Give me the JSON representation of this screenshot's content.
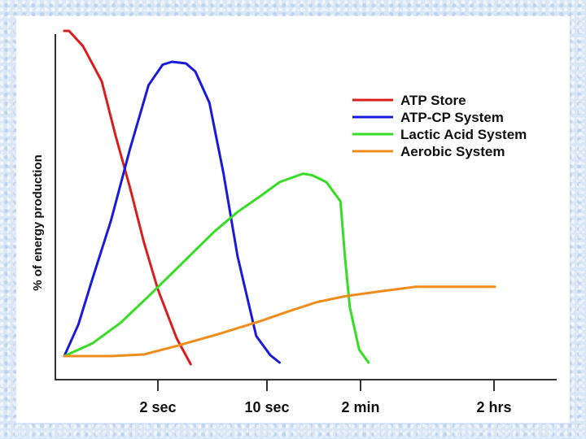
{
  "chart_data": {
    "type": "line",
    "title": "",
    "xlabel": "",
    "ylabel": "% of energy production",
    "ylim": [
      0,
      100
    ],
    "categories": [
      "2 sec",
      "10 sec",
      "2 min",
      "2 hrs"
    ],
    "grid": false,
    "legend_position": "top-right",
    "series": [
      {
        "name": "ATP Store",
        "color": "#d81e1e",
        "points": [
          [
            0,
            100
          ],
          [
            0.05,
            100
          ],
          [
            0.2,
            95.3
          ],
          [
            0.4,
            84.5
          ],
          [
            0.55,
            67.5
          ],
          [
            0.7,
            52
          ],
          [
            0.85,
            35
          ],
          [
            1,
            20.5
          ],
          [
            1.2,
            5.5
          ],
          [
            1.35,
            -2.5
          ]
        ]
      },
      {
        "name": "ATP-CP System",
        "color": "#1a1adb",
        "points": [
          [
            0,
            0
          ],
          [
            0.15,
            9.7
          ],
          [
            0.3,
            23.7
          ],
          [
            0.5,
            41.8
          ],
          [
            0.7,
            63.5
          ],
          [
            0.9,
            83.3
          ],
          [
            1.05,
            89.6
          ],
          [
            1.15,
            90.5
          ],
          [
            1.3,
            90
          ],
          [
            1.4,
            87.5
          ],
          [
            1.55,
            77.9
          ],
          [
            1.7,
            56.3
          ],
          [
            1.85,
            30.8
          ],
          [
            2.05,
            6.2
          ],
          [
            2.2,
            0.3
          ],
          [
            2.3,
            -2
          ]
        ]
      },
      {
        "name": "Lactic Acid System",
        "color": "#36dd24",
        "points": [
          [
            0,
            0
          ],
          [
            0.3,
            3.9
          ],
          [
            0.6,
            10.2
          ],
          [
            0.9,
            18.4
          ],
          [
            1.25,
            28.3
          ],
          [
            1.6,
            38.2
          ],
          [
            1.85,
            44.3
          ],
          [
            2.1,
            49.3
          ],
          [
            2.3,
            53.5
          ],
          [
            2.55,
            56.1
          ],
          [
            2.65,
            55.6
          ],
          [
            2.8,
            53.5
          ],
          [
            2.95,
            47.6
          ],
          [
            3.0,
            30
          ],
          [
            3.05,
            15
          ],
          [
            3.15,
            2
          ],
          [
            3.25,
            -2
          ]
        ]
      },
      {
        "name": "Aerobic System",
        "color": "#f08c1c",
        "points": [
          [
            0,
            0
          ],
          [
            0.5,
            0
          ],
          [
            0.85,
            0.5
          ],
          [
            1.2,
            3.1
          ],
          [
            1.65,
            6.8
          ],
          [
            2.1,
            10.8
          ],
          [
            2.4,
            13.8
          ],
          [
            2.7,
            16.6
          ],
          [
            3.0,
            18.4
          ],
          [
            3.4,
            20
          ],
          [
            3.75,
            21.3
          ],
          [
            4.2,
            21.3
          ],
          [
            4.6,
            21.3
          ]
        ]
      }
    ]
  }
}
